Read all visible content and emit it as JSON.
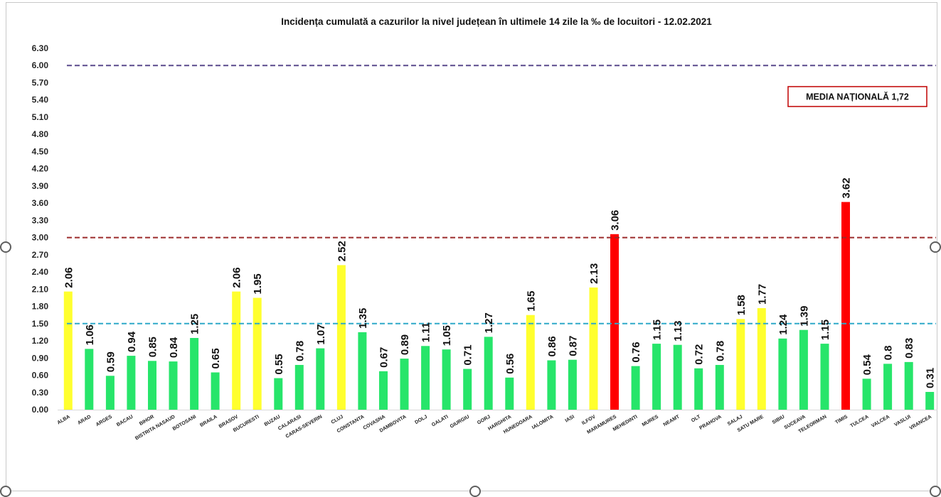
{
  "chart_data": {
    "type": "bar",
    "title": "Incidența cumulată a cazurilor la nivel județean în ultimele 14 zile la ‰ de locuitori - 12.02.2021",
    "categories": [
      "ALBA",
      "ARAD",
      "ARGES",
      "BACAU",
      "BIHOR",
      "BISTRITA NASAUD",
      "BOTOSANI",
      "BRAILA",
      "BRASOV",
      "BUCURESTI",
      "BUZAU",
      "CALARASI",
      "CARAS-SEVERIN",
      "CLUJ",
      "CONSTANTA",
      "COVASNA",
      "DAMBOVITA",
      "DOLJ",
      "GALATI",
      "GIURGIU",
      "GORJ",
      "HARGHITA",
      "HUNEDOARA",
      "IALOMITA",
      "IASI",
      "ILFOV",
      "MARAMURES",
      "MEHEDINTI",
      "MURES",
      "NEAMT",
      "OLT",
      "PRAHOVA",
      "SALAJ",
      "SATU MARE",
      "SIBIU",
      "SUCEAVA",
      "TELEORMAN",
      "TIMIS",
      "TULCEA",
      "VALCEA",
      "VASLUI",
      "VRANCEA"
    ],
    "values": [
      2.06,
      1.06,
      0.59,
      0.94,
      0.85,
      0.84,
      1.25,
      0.65,
      2.06,
      1.95,
      0.55,
      0.78,
      1.07,
      2.52,
      1.35,
      0.67,
      0.89,
      1.11,
      1.05,
      0.71,
      1.27,
      0.56,
      1.65,
      0.86,
      0.87,
      2.13,
      3.06,
      0.76,
      1.15,
      1.13,
      0.72,
      0.78,
      1.58,
      1.77,
      1.24,
      1.39,
      1.15,
      3.62,
      0.54,
      0.8,
      0.83,
      0.31
    ],
    "bar_colors": [
      "#ffff2e",
      "#27e56a",
      "#27e56a",
      "#27e56a",
      "#27e56a",
      "#27e56a",
      "#27e56a",
      "#27e56a",
      "#ffff2e",
      "#ffff2e",
      "#27e56a",
      "#27e56a",
      "#27e56a",
      "#ffff2e",
      "#27e56a",
      "#27e56a",
      "#27e56a",
      "#27e56a",
      "#27e56a",
      "#27e56a",
      "#27e56a",
      "#27e56a",
      "#ffff2e",
      "#27e56a",
      "#27e56a",
      "#ffff2e",
      "#ff0000",
      "#27e56a",
      "#27e56a",
      "#27e56a",
      "#27e56a",
      "#27e56a",
      "#ffff2e",
      "#ffff2e",
      "#27e56a",
      "#27e56a",
      "#27e56a",
      "#ff0000",
      "#27e56a",
      "#27e56a",
      "#27e56a",
      "#27e56a"
    ],
    "ylim": [
      0,
      6.3
    ],
    "yticks": [
      "0.00",
      "0.30",
      "0.60",
      "0.90",
      "1.20",
      "1.50",
      "1.80",
      "2.10",
      "2.40",
      "2.70",
      "3.00",
      "3.30",
      "3.60",
      "3.90",
      "4.20",
      "4.50",
      "4.80",
      "5.10",
      "5.40",
      "5.70",
      "6.00",
      "6.30"
    ],
    "reference_lines": [
      {
        "value": 6.0,
        "color": "#5a4a8c",
        "style": "dashed"
      },
      {
        "value": 3.0,
        "color": "#9c2b2b",
        "style": "dashed"
      },
      {
        "value": 1.5,
        "color": "#2fa9c9",
        "style": "dashed"
      }
    ],
    "annotation": {
      "text": "MEDIA NAȚIONALĂ 1,72",
      "border_color": "#c00000"
    },
    "data_labels": true,
    "grid": false,
    "legend": "none"
  }
}
